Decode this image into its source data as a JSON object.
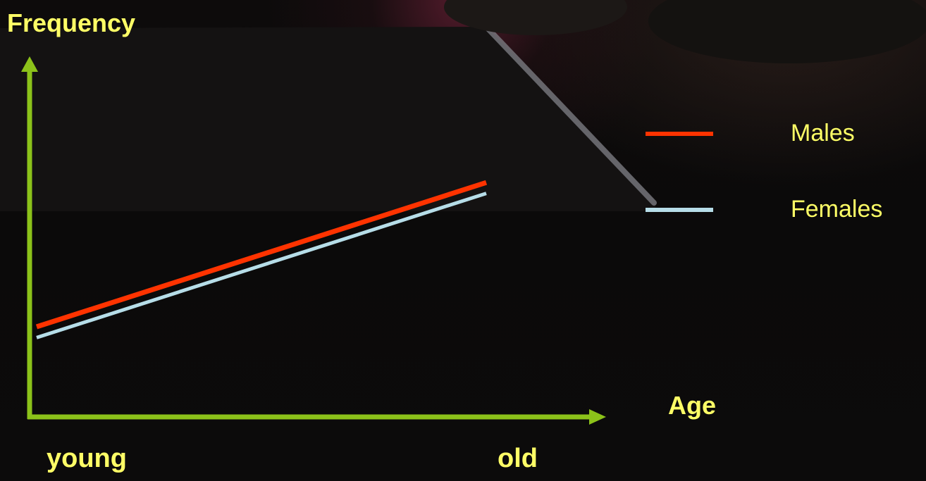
{
  "colors": {
    "axis": "#8cc21a",
    "text": "#ffff66",
    "males": "#ff3300",
    "females": "#b6dde8"
  },
  "chart_data": {
    "type": "line",
    "title": "",
    "xlabel": "Age",
    "ylabel": "Frequency",
    "x_tick_labels": [
      "young",
      "old"
    ],
    "x": [
      0,
      1
    ],
    "xlim": [
      0,
      1
    ],
    "ylim": [
      0,
      1
    ],
    "grid": false,
    "legend_position": "right",
    "series": [
      {
        "name": "Males",
        "color": "#ff3300",
        "values": [
          0.25,
          0.65
        ]
      },
      {
        "name": "Females",
        "color": "#b6dde8",
        "values": [
          0.22,
          0.62
        ]
      }
    ]
  }
}
